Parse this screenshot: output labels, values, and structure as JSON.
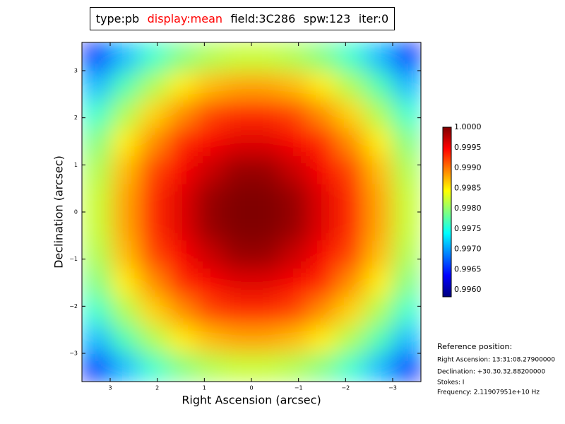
{
  "header": {
    "items": [
      {
        "text": "type:pb",
        "color": "#000000"
      },
      {
        "text": "display:mean",
        "color": "#ff0000"
      },
      {
        "text": "field:3C286",
        "color": "#000000"
      },
      {
        "text": "spw:123",
        "color": "#000000"
      },
      {
        "text": "iter:0",
        "color": "#000000"
      }
    ]
  },
  "chart_data": {
    "type": "heatmap",
    "colormap": "jet",
    "xlabel": "Right Ascension (arcsec)",
    "ylabel": "Declination (arcsec)",
    "xlim": [
      3.6,
      -3.6
    ],
    "ylim": [
      -3.6,
      3.6
    ],
    "xticks": [
      3,
      2,
      1,
      0,
      {
        "value": -1,
        "label": "−1"
      },
      {
        "value": -2,
        "label": "−2"
      },
      {
        "value": -3,
        "label": "−3"
      }
    ],
    "yticks": [
      3,
      2,
      1,
      0,
      {
        "value": -1,
        "label": "−1"
      },
      {
        "value": -2,
        "label": "−2"
      },
      {
        "value": -3,
        "label": "−3"
      }
    ],
    "x": [
      -3.3,
      -2.7,
      -2.1,
      -1.5,
      -0.9,
      -0.3,
      0.3,
      0.9,
      1.5,
      2.1,
      2.7,
      3.3
    ],
    "y": [
      -3.3,
      -2.7,
      -2.1,
      -1.5,
      -0.9,
      -0.3,
      0.3,
      0.9,
      1.5,
      2.1,
      2.7,
      3.3
    ],
    "z": [
      [
        0.9965,
        0.9971,
        0.9976,
        0.9979,
        0.9981,
        0.9982,
        0.9982,
        0.9981,
        0.9979,
        0.9976,
        0.9971,
        0.9965
      ],
      [
        0.9971,
        0.9977,
        0.9981,
        0.9985,
        0.9987,
        0.9988,
        0.9988,
        0.9987,
        0.9985,
        0.9981,
        0.9977,
        0.9971
      ],
      [
        0.9976,
        0.9981,
        0.9986,
        0.9989,
        0.9992,
        0.9993,
        0.9993,
        0.9992,
        0.9989,
        0.9986,
        0.9981,
        0.9976
      ],
      [
        0.9979,
        0.9985,
        0.9989,
        0.9993,
        0.9995,
        0.9996,
        0.9996,
        0.9995,
        0.9993,
        0.9989,
        0.9985,
        0.9979
      ],
      [
        0.9981,
        0.9987,
        0.9992,
        0.9995,
        0.9997,
        0.9999,
        0.9999,
        0.9997,
        0.9995,
        0.9992,
        0.9987,
        0.9981
      ],
      [
        0.9982,
        0.9988,
        0.9993,
        0.9996,
        0.9999,
        1,
        1,
        0.9999,
        0.9996,
        0.9993,
        0.9988,
        0.9982
      ],
      [
        0.9982,
        0.9988,
        0.9993,
        0.9996,
        0.9999,
        1,
        1,
        0.9999,
        0.9996,
        0.9993,
        0.9988,
        0.9982
      ],
      [
        0.9981,
        0.9987,
        0.9992,
        0.9995,
        0.9997,
        0.9999,
        0.9999,
        0.9997,
        0.9995,
        0.9992,
        0.9987,
        0.9981
      ],
      [
        0.9979,
        0.9985,
        0.9989,
        0.9993,
        0.9995,
        0.9996,
        0.9996,
        0.9995,
        0.9993,
        0.9989,
        0.9985,
        0.9979
      ],
      [
        0.9976,
        0.9981,
        0.9986,
        0.9989,
        0.9992,
        0.9993,
        0.9993,
        0.9992,
        0.9989,
        0.9986,
        0.9981,
        0.9976
      ],
      [
        0.9971,
        0.9977,
        0.9981,
        0.9985,
        0.9987,
        0.9988,
        0.9988,
        0.9987,
        0.9985,
        0.9981,
        0.9977,
        0.9971
      ],
      [
        0.9965,
        0.9971,
        0.9976,
        0.9979,
        0.9981,
        0.9982,
        0.9982,
        0.9981,
        0.9979,
        0.9976,
        0.9971,
        0.9965
      ]
    ],
    "clim": [
      0.99583,
      1.0
    ],
    "cticks": [
      {
        "value": 1,
        "label": "1.0000"
      },
      {
        "value": 0.9995,
        "label": "0.9995"
      },
      {
        "value": 0.999,
        "label": "0.9990"
      },
      {
        "value": 0.9985,
        "label": "0.9985"
      },
      {
        "value": 0.998,
        "label": "0.9980"
      },
      {
        "value": 0.9975,
        "label": "0.9975"
      },
      {
        "value": 0.997,
        "label": "0.9970"
      },
      {
        "value": 0.9965,
        "label": "0.9965"
      },
      {
        "value": 0.996,
        "label": "0.9960"
      }
    ]
  },
  "reference": {
    "title": "Reference position:",
    "lines": [
      "Right Ascension: 13:31:08.27900000",
      "Declination: +30.30.32.88200000",
      "Stokes: I",
      "Frequency: 2.11907951e+10 Hz"
    ]
  }
}
